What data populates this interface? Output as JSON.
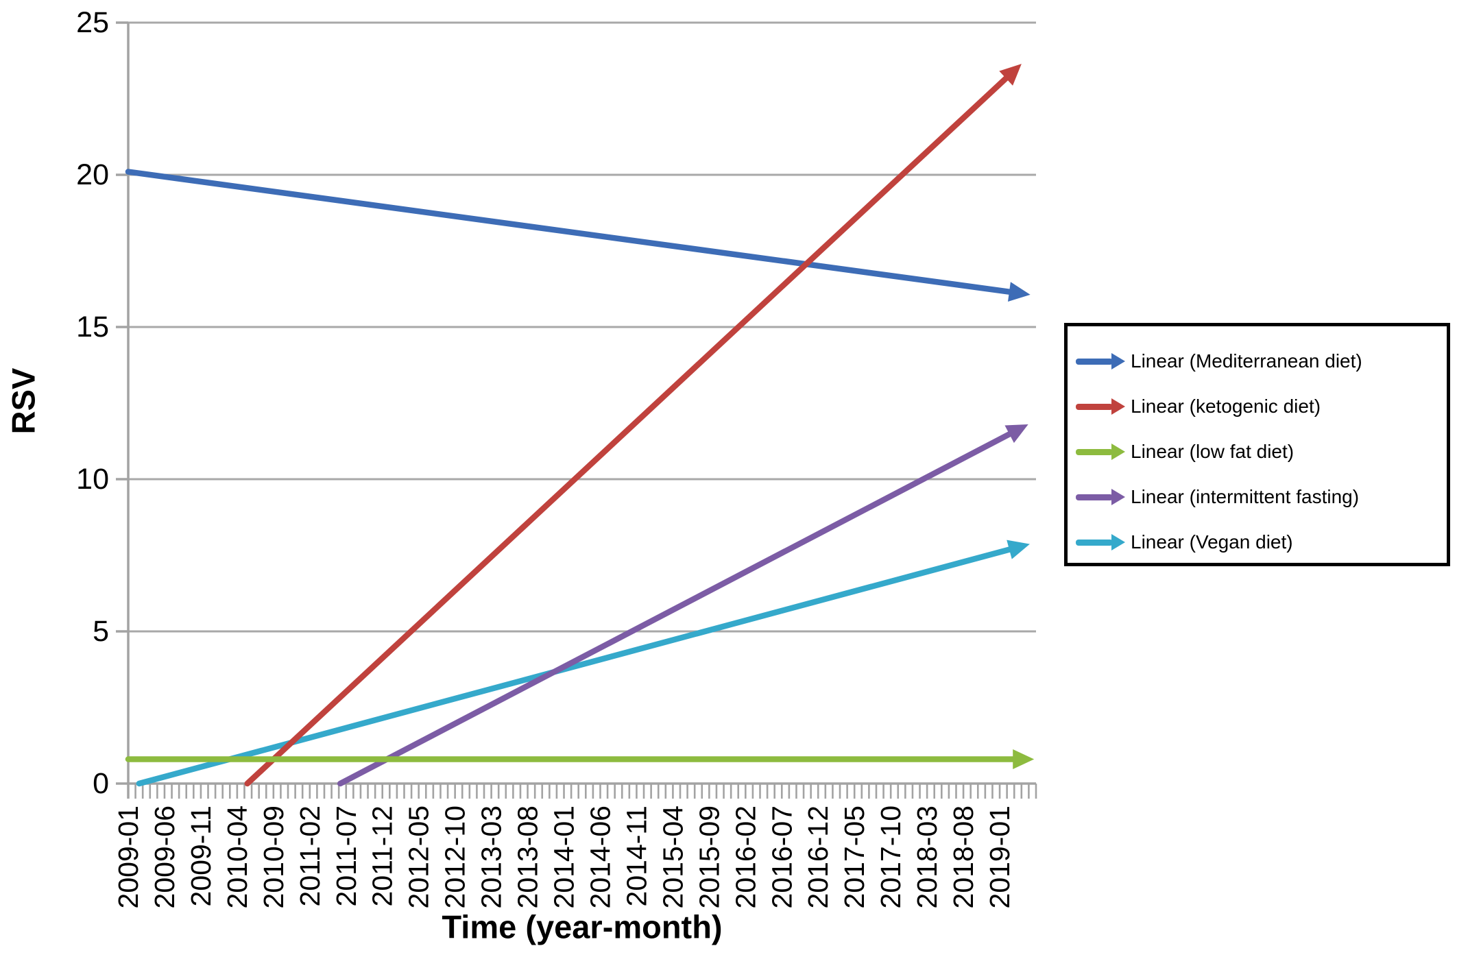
{
  "figure": {
    "background": "#FFFFFF",
    "text_color": "#000000"
  },
  "chart_data": {
    "type": "line",
    "title": "",
    "xlabel": "Time (year-month)",
    "ylabel": "RSV",
    "ylim": [
      0,
      25
    ],
    "yticks": [
      0,
      5,
      10,
      15,
      20,
      25
    ],
    "x_unit": "months since 2009-01",
    "x_range_months": [
      0,
      125
    ],
    "x_tick_step_months": 5,
    "x_minor_tick_every_months": 1,
    "x_tick_labels": [
      "2009-01",
      "2009-06",
      "2009-11",
      "2010-04",
      "2010-09",
      "2011-02",
      "2011-07",
      "2011-12",
      "2012-05",
      "2012-10",
      "2013-03",
      "2013-08",
      "2014-01",
      "2014-06",
      "2014-11",
      "2015-04",
      "2015-09",
      "2016-02",
      "2016-07",
      "2016-12",
      "2017-05",
      "2017-10",
      "2018-03",
      "2018-08",
      "2019-01"
    ],
    "grid": "horizontal",
    "grid_color": "#A8A8A8",
    "axis_color": "#A3A3A3",
    "legend_position": "right",
    "series": [
      {
        "name": "Linear (Mediterranean diet)",
        "color": "#3D6CB6",
        "arrow_end": true,
        "points": [
          [
            0,
            20.1
          ],
          [
            121.5,
            16.15
          ]
        ]
      },
      {
        "name": "Linear (ketogenic diet)",
        "color": "#C0423D",
        "arrow_end": true,
        "points": [
          [
            16.4,
            0
          ],
          [
            121,
            23.2
          ]
        ]
      },
      {
        "name": "Linear (low fat diet)",
        "color": "#8DBB3F",
        "arrow_end": true,
        "points": [
          [
            0,
            0.8
          ],
          [
            122,
            0.8
          ]
        ]
      },
      {
        "name": "Linear (intermittent fasting)",
        "color": "#7C5CA5",
        "arrow_end": true,
        "points": [
          [
            29.2,
            0
          ],
          [
            121.5,
            11.5
          ]
        ]
      },
      {
        "name": "Linear (Vegan diet)",
        "color": "#35A9CB",
        "arrow_end": true,
        "points": [
          [
            1.5,
            0
          ],
          [
            121.5,
            7.7
          ]
        ]
      }
    ],
    "z_draw_order": [
      0,
      4,
      1,
      3,
      2
    ]
  }
}
